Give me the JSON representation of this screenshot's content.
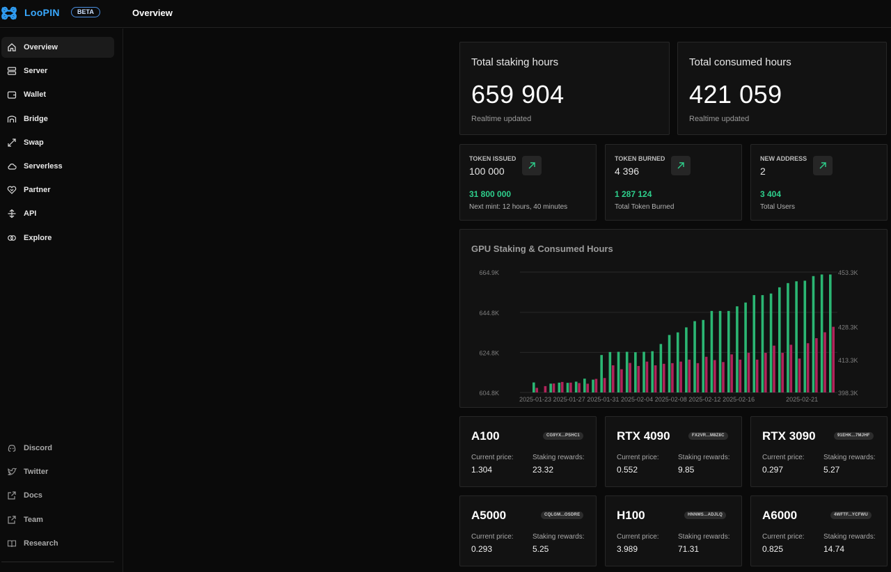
{
  "app": {
    "name": "LooPIN",
    "badge": "BETA",
    "page_title": "Overview"
  },
  "sidebar": {
    "items": [
      {
        "label": "Overview",
        "icon": "home-icon"
      },
      {
        "label": "Server",
        "icon": "server-icon"
      },
      {
        "label": "Wallet",
        "icon": "wallet-icon"
      },
      {
        "label": "Bridge",
        "icon": "bridge-icon"
      },
      {
        "label": "Swap",
        "icon": "swap-icon"
      },
      {
        "label": "Serverless",
        "icon": "cloud-icon"
      },
      {
        "label": "Partner",
        "icon": "handshake-icon"
      },
      {
        "label": "API",
        "icon": "api-icon"
      },
      {
        "label": "Explore",
        "icon": "explore-icon"
      }
    ],
    "footer_items": [
      {
        "label": "Discord",
        "icon": "discord-icon"
      },
      {
        "label": "Twitter",
        "icon": "twitter-icon"
      },
      {
        "label": "Docs",
        "icon": "external-link-icon"
      },
      {
        "label": "Team",
        "icon": "external-link-icon"
      },
      {
        "label": "Research",
        "icon": "book-icon"
      }
    ]
  },
  "stats": {
    "staking": {
      "title": "Total staking hours",
      "value": "659 904",
      "sub": "Realtime updated"
    },
    "consumed": {
      "title": "Total consumed hours",
      "value": "421 059",
      "sub": "Realtime updated"
    }
  },
  "tokens": [
    {
      "title": "TOKEN ISSUED",
      "value": "100 000",
      "green": "31 800 000",
      "sub": "Next mint: 12 hours, 40 minutes"
    },
    {
      "title": "TOKEN BURNED",
      "value": "4 396",
      "green": "1 287 124",
      "sub": "Total Token Burned"
    },
    {
      "title": "NEW ADDRESS",
      "value": "2",
      "green": "3 404",
      "sub": "Total Users"
    }
  ],
  "chart": {
    "title": "GPU Staking & Consumed Hours"
  },
  "chart_data": {
    "type": "bar",
    "title": "GPU Staking & Consumed Hours",
    "x_tick_labels": [
      "2025-01-23",
      "2025-01-27",
      "2025-01-31",
      "2025-02-04",
      "2025-02-08",
      "2025-02-12",
      "2025-02-16",
      "2025-02-21"
    ],
    "left_axis": {
      "ticks": [
        "604.8K",
        "624.8K",
        "644.8K",
        "664.9K"
      ],
      "ylim": [
        604800,
        664900
      ]
    },
    "right_axis": {
      "ticks": [
        "398.3K",
        "413.3K",
        "428.3K",
        "453.3K"
      ],
      "ylim": [
        398300,
        453300
      ]
    },
    "grid": true,
    "series": [
      {
        "axis": "left",
        "color": "#2bb673",
        "values": [
          609800,
          null,
          609200,
          609700,
          609600,
          610200,
          611700,
          611200,
          623500,
          625000,
          625100,
          625100,
          624900,
          625100,
          625400,
          629000,
          633500,
          634800,
          637300,
          640400,
          641000,
          645500,
          645500,
          645500,
          647800,
          649700,
          653400,
          653400,
          654200,
          657300,
          659400,
          660300,
          660600,
          662900,
          663700,
          663700
        ]
      },
      {
        "axis": "right",
        "color": "#b0245a",
        "values": [
          400400,
          401200,
          402400,
          403100,
          402800,
          402600,
          402300,
          404500,
          404900,
          410700,
          408900,
          411800,
          410400,
          412400,
          410700,
          411400,
          411700,
          412400,
          413300,
          411700,
          414600,
          413100,
          412200,
          415700,
          413300,
          416400,
          413300,
          416400,
          419700,
          416400,
          420100,
          413800,
          420800,
          423100,
          425800,
          428300
        ]
      }
    ]
  },
  "gpus": [
    {
      "name": "A100",
      "addr": "CG9YX...PSHC1",
      "price_label": "Current price:",
      "price": "1.304",
      "reward_label": "Staking rewards:",
      "reward": "23.32"
    },
    {
      "name": "RTX 4090",
      "addr": "FX2VR...M8Z8C",
      "price_label": "Current price:",
      "price": "0.552",
      "reward_label": "Staking rewards:",
      "reward": "9.85"
    },
    {
      "name": "RTX 3090",
      "addr": "91EHK...7MJHF",
      "price_label": "Current price:",
      "price": "0.297",
      "reward_label": "Staking rewards:",
      "reward": "5.27"
    },
    {
      "name": "A5000",
      "addr": "CQLGM...OSDRE",
      "price_label": "Current price:",
      "price": "0.293",
      "reward_label": "Staking rewards:",
      "reward": "5.25"
    },
    {
      "name": "H100",
      "addr": "HNNMS...ADJLQ",
      "price_label": "Current price:",
      "price": "3.989",
      "reward_label": "Staking rewards:",
      "reward": "71.31"
    },
    {
      "name": "A6000",
      "addr": "4WFTF...YCFWU",
      "price_label": "Current price:",
      "price": "0.825",
      "reward_label": "Staking rewards:",
      "reward": "14.74"
    }
  ]
}
